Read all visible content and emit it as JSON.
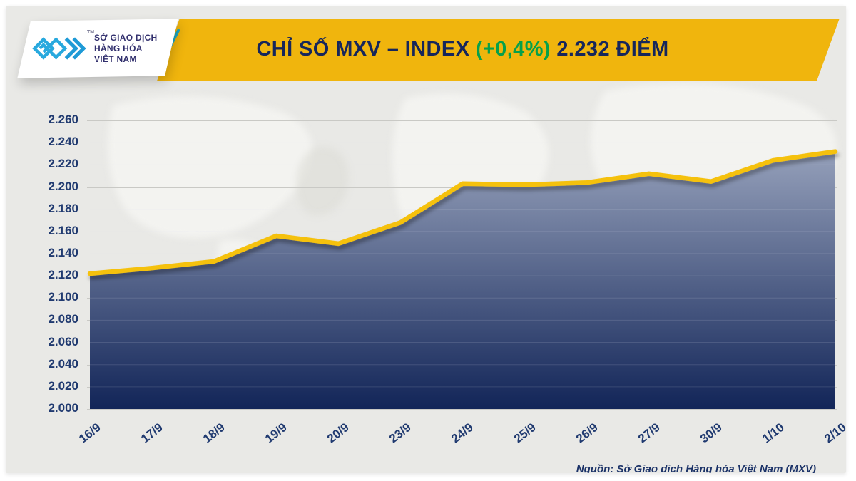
{
  "logo": {
    "name_lines": [
      "SỞ GIAO DỊCH",
      "HÀNG HÓA",
      "VIỆT NAM"
    ],
    "trademark": "TM"
  },
  "banner": {
    "prefix": "CHỈ SỐ MXV – INDEX",
    "change": "(+0,4%)",
    "suffix": "2.232 ĐIỂM"
  },
  "footer": {
    "source": "Nguồn: Sở Giao dịch Hàng hóa Việt Nam (MXV)"
  },
  "colors": {
    "banner_bg": "#F0B50D",
    "title_navy": "#16265B",
    "change_green": "#07A04A",
    "line_yellow": "#F5C10B",
    "area_top": "#95A0BA",
    "area_bottom": "#122558",
    "background": "#E9E9E6",
    "gridline": "#C9C9C5",
    "axis_text": "#203A70",
    "stripe_teal": "#1BA8C5",
    "logo_blue": "#28A9DE"
  },
  "chart_data": {
    "type": "area",
    "title": "CHỈ SỐ MXV – INDEX (+0,4%) 2.232 ĐIỂM",
    "unit": "điểm",
    "categories": [
      "16/9",
      "17/9",
      "18/9",
      "19/9",
      "20/9",
      "23/9",
      "24/9",
      "25/9",
      "26/9",
      "27/9",
      "30/9",
      "1/10",
      "2/10"
    ],
    "values": [
      2122,
      2127,
      2133,
      2156,
      2149,
      2168,
      2203,
      2202,
      2204,
      2212,
      2205,
      2224,
      2232
    ],
    "ylim": [
      2000,
      2260
    ],
    "ytick_step": 20,
    "ytick_labels": [
      "2.260",
      "2.240",
      "2.220",
      "2.200",
      "2.180",
      "2.160",
      "2.140",
      "2.120",
      "2.100",
      "2.080",
      "2.060",
      "2.040",
      "2.020",
      "2.000"
    ],
    "grid": "horizontal",
    "legend": "none",
    "source": "Nguồn: Sở Giao dịch Hàng hóa Việt Nam (MXV)"
  }
}
